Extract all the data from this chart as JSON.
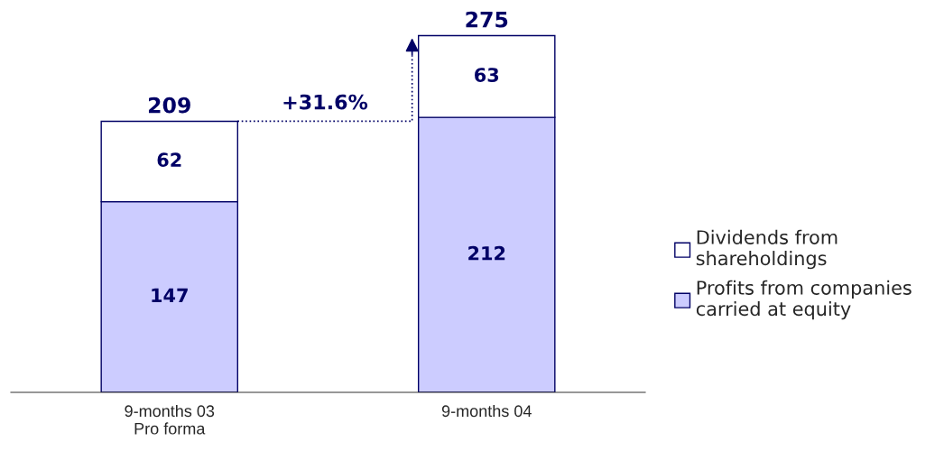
{
  "chart_data": {
    "type": "bar",
    "stacked": true,
    "categories": [
      "9-months 03\nPro forma",
      "9-months 04"
    ],
    "series": [
      {
        "name": "Profits from companies\ncarried at equity",
        "color": "#ccccff",
        "values": [
          147,
          212
        ]
      },
      {
        "name": "Dividends from\nshareholdings",
        "color": "#ffffff",
        "values": [
          62,
          63
        ]
      }
    ],
    "totals": [
      "209",
      "275"
    ],
    "data_labels": true,
    "legend": "right",
    "grid": false,
    "annotations": [
      "+31.6%"
    ]
  }
}
